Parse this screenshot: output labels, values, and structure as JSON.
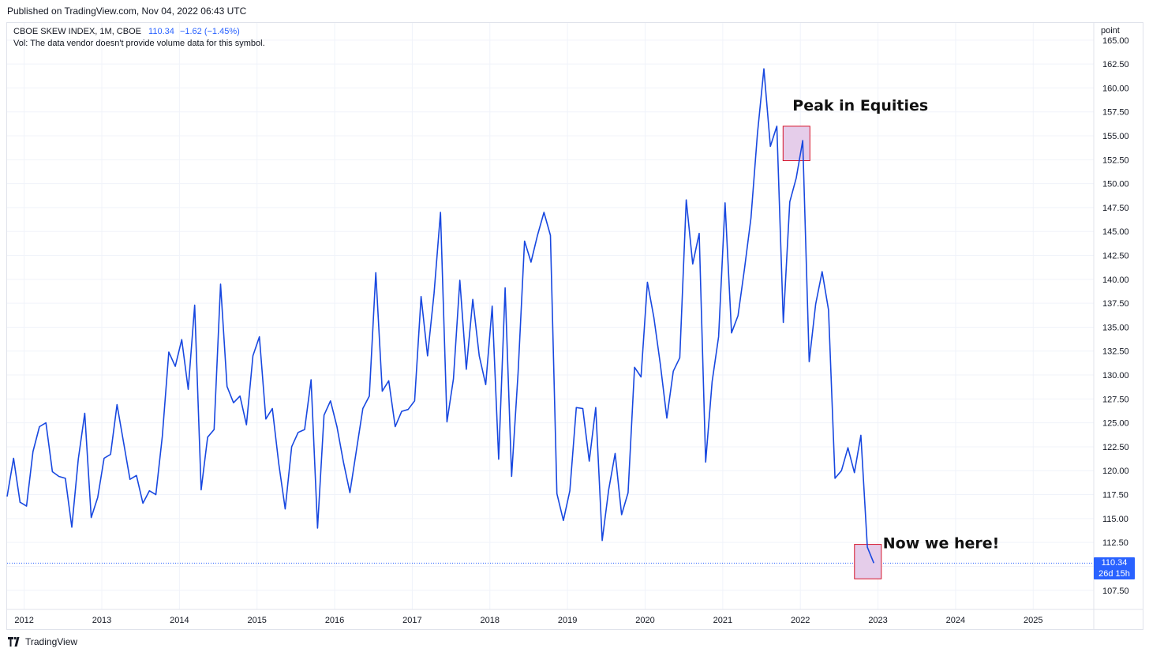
{
  "header": {
    "published": "Published on TradingView.com, Nov 04, 2022 06:43 UTC"
  },
  "legend": {
    "symbol": "CBOE SKEW INDEX, 1M, CBOE",
    "price": "110.34",
    "change": "−1.62 (−1.45%)",
    "volume_note": "Vol: The data vendor doesn't provide volume data for this symbol."
  },
  "price_tag": {
    "value": "110.34",
    "countdown": "26d 15h"
  },
  "footer": {
    "brand": "TradingView"
  },
  "colors": {
    "line": "#1848e0",
    "accent": "#2962ff",
    "box_fill": "#e5cdea",
    "box_stroke": "#d5142a",
    "grid": "#f0f3fa"
  },
  "chart_data": {
    "type": "line",
    "title": "CBOE SKEW INDEX, 1M, CBOE",
    "xlabel": "",
    "ylabel": "point",
    "ylim": [
      105.5,
      166.8
    ],
    "y_ticks": [
      "165.00",
      "162.50",
      "160.00",
      "157.50",
      "155.00",
      "152.50",
      "150.00",
      "147.50",
      "145.00",
      "142.50",
      "140.00",
      "137.50",
      "135.00",
      "132.50",
      "130.00",
      "127.50",
      "125.00",
      "122.50",
      "120.00",
      "117.50",
      "115.00",
      "112.50",
      "110.00",
      "107.50"
    ],
    "x_ticks": [
      "2012",
      "2013",
      "2014",
      "2015",
      "2016",
      "2017",
      "2018",
      "2019",
      "2020",
      "2021",
      "2022",
      "2023",
      "2024",
      "2025"
    ],
    "x_tick_years": [
      2012,
      2013,
      2014,
      2015,
      2016,
      2017,
      2018,
      2019,
      2020,
      2021,
      2022,
      2023,
      2024,
      2025
    ],
    "x_range": [
      2011.78,
      2025.78
    ],
    "start": 2011.78,
    "step_months": 1,
    "series": [
      {
        "name": "CBOE SKEW INDEX",
        "values": [
          117.3,
          121.3,
          116.7,
          116.3,
          122.0,
          124.6,
          125.0,
          119.9,
          119.4,
          119.2,
          114.1,
          121.2,
          126.0,
          115.1,
          117.2,
          121.3,
          121.7,
          126.9,
          123.0,
          119.1,
          119.5,
          116.6,
          117.9,
          117.5,
          123.6,
          132.4,
          130.9,
          133.7,
          128.5,
          137.3,
          118.0,
          123.5,
          124.3,
          139.5,
          128.8,
          127.1,
          127.8,
          124.8,
          132.0,
          134.0,
          125.4,
          126.5,
          120.7,
          116.0,
          122.5,
          124.0,
          124.3,
          129.5,
          114.0,
          125.8,
          127.3,
          124.6,
          120.9,
          117.7,
          122.1,
          126.5,
          127.8,
          140.7,
          128.3,
          129.4,
          124.6,
          126.2,
          126.4,
          127.3,
          138.2,
          132.0,
          138.5,
          147.0,
          125.1,
          129.6,
          139.9,
          130.6,
          137.9,
          132.0,
          129.0,
          137.2,
          121.2,
          139.1,
          119.4,
          130.2,
          144.0,
          141.8,
          144.6,
          147.0,
          144.6,
          117.6,
          114.8,
          117.9,
          126.6,
          126.5,
          121.0,
          126.6,
          112.7,
          118.0,
          121.8,
          115.4,
          117.7,
          130.8,
          129.8,
          139.7,
          136.0,
          131.1,
          125.5,
          130.4,
          131.8,
          148.3,
          141.6,
          144.8,
          120.9,
          129.3,
          134.0,
          148.0,
          134.4,
          136.2,
          141.1,
          146.4,
          155.2,
          162.0,
          153.9,
          156.0,
          135.5,
          148.1,
          150.6,
          154.5,
          131.4,
          137.4,
          140.8,
          136.8,
          119.2,
          120.0,
          122.4,
          119.8,
          123.7,
          112.0,
          110.34
        ]
      }
    ],
    "annotations": [
      {
        "text": "Peak in Equities",
        "x": 2021.95,
        "y": 154.3,
        "y_top": 156.0,
        "y_bottom": 152.4
      },
      {
        "text": "Now we here!",
        "x": 2022.87,
        "y": 110.34,
        "y_top": 112.3,
        "y_bottom": 108.7
      }
    ],
    "last_value": 110.34
  }
}
